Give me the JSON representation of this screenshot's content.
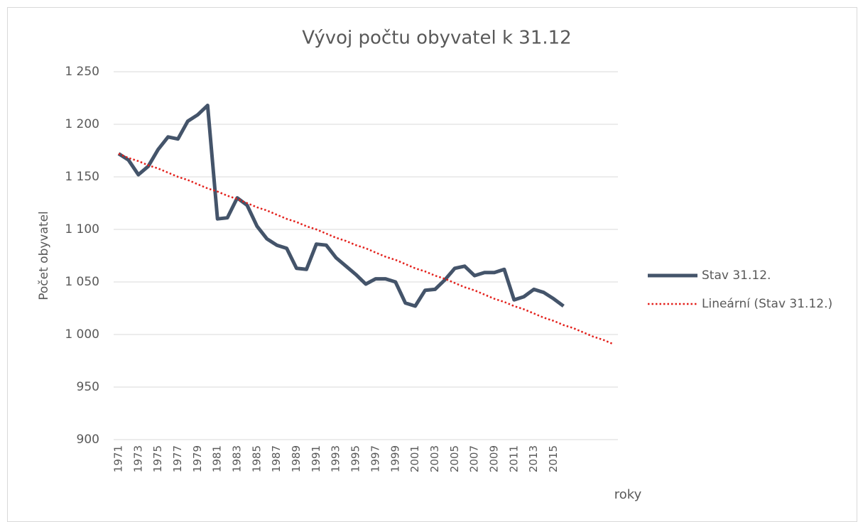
{
  "chart_data": {
    "type": "line",
    "title": "Vývoj počtu obyvatel k 31.12",
    "ylabel": "Počet obyvatel",
    "xlabel": "roky",
    "categories": [
      "1971",
      null,
      "1973",
      null,
      "1975",
      null,
      "1977",
      null,
      "1979",
      null,
      "1981",
      null,
      "1983",
      null,
      "1985",
      null,
      "1987",
      null,
      "1989",
      null,
      "1991",
      null,
      "1993",
      null,
      "1995",
      null,
      "1997",
      null,
      "1999",
      null,
      "2001",
      null,
      "2003",
      null,
      "2005",
      null,
      "2007",
      null,
      "2009",
      null,
      "2011",
      null,
      "2013",
      null,
      "2015",
      null,
      null,
      null,
      null,
      null,
      null
    ],
    "series": [
      {
        "name": "Stav 31.12.",
        "color": "#44546a",
        "line_style": "solid",
        "values": [
          1172,
          1166,
          1152,
          1160,
          1176,
          1188,
          1186,
          1203,
          1209,
          1218,
          1110,
          1111,
          1130,
          1123,
          1103,
          1091,
          1085,
          1082,
          1063,
          1062,
          1086,
          1085,
          1073,
          1065,
          1057,
          1048,
          1053,
          1053,
          1050,
          1030,
          1027,
          1042,
          1043,
          1052,
          1063,
          1065,
          1056,
          1059,
          1059,
          1062,
          1033,
          1036,
          1043,
          1040,
          1034,
          1027,
          null,
          null,
          null,
          null,
          null
        ]
      },
      {
        "name": "Lineární (Stav 31.12.)",
        "color": "#e3201b",
        "line_style": "dotted",
        "values": [
          1172,
          1168,
          1165,
          1161,
          1158,
          1154,
          1150,
          1147,
          1143,
          1139,
          1136,
          1132,
          1129,
          1125,
          1121,
          1118,
          1114,
          1110,
          1107,
          1103,
          1100,
          1096,
          1092,
          1089,
          1085,
          1082,
          1078,
          1074,
          1071,
          1067,
          1063,
          1060,
          1056,
          1053,
          1049,
          1045,
          1042,
          1038,
          1034,
          1031,
          1027,
          1024,
          1020,
          1016,
          1013,
          1009,
          1006,
          1002,
          998,
          995,
          991
        ]
      }
    ],
    "ylim": [
      900,
      1250
    ],
    "yticks": [
      900,
      950,
      {
        "value": 1000,
        "label": "1 000"
      },
      {
        "value": 1050,
        "label": "1 050"
      },
      {
        "value": 1100,
        "label": "1 100"
      },
      {
        "value": 1150,
        "label": "1 150"
      },
      {
        "value": 1200,
        "label": "1 200"
      },
      {
        "value": 1250,
        "label": "1 250"
      }
    ],
    "grid": true,
    "legend": "right"
  }
}
